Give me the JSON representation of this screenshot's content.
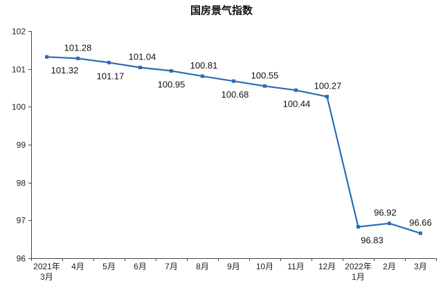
{
  "chart_data": {
    "type": "line",
    "title": "国房景气指数",
    "categories": [
      [
        "2021年",
        "3月"
      ],
      [
        "4月"
      ],
      [
        "5月"
      ],
      [
        "6月"
      ],
      [
        "7月"
      ],
      [
        "8月"
      ],
      [
        "9月"
      ],
      [
        "10月"
      ],
      [
        "11月"
      ],
      [
        "12月"
      ],
      [
        "2022年",
        "1月"
      ],
      [
        "2月"
      ],
      [
        "3月"
      ]
    ],
    "series": [
      {
        "values": [
          101.32,
          101.28,
          101.17,
          101.04,
          100.95,
          100.81,
          100.68,
          100.55,
          100.44,
          100.27,
          96.83,
          96.92,
          96.66
        ],
        "color": "#2b6cb5",
        "marker": "square"
      }
    ],
    "label_positions": [
      "below",
      "above",
      "below",
      "above",
      "below",
      "above",
      "below",
      "above",
      "below",
      "above",
      "below",
      "above",
      "above"
    ],
    "xlabel": "",
    "ylabel": "",
    "ylim": [
      96,
      102
    ],
    "yticks": [
      96,
      97,
      98,
      99,
      100,
      101,
      102
    ],
    "grid": false,
    "legend": "none"
  }
}
